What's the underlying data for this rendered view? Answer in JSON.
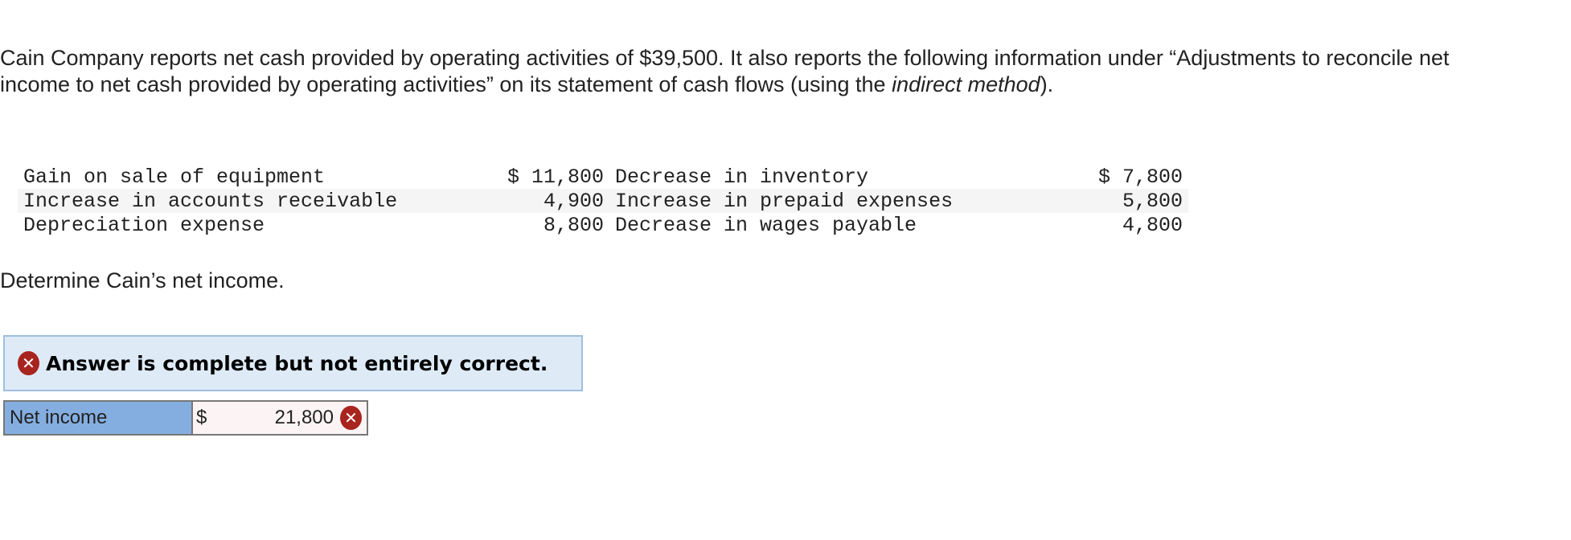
{
  "question": {
    "text_before": "Cain Company reports net cash provided by operating activities of $39,500. It also reports the following information under “Adjustments to reconcile net income to net cash provided by operating activities” on its statement of cash flows (using the ",
    "emphasis": "indirect method",
    "text_after": ")."
  },
  "table": {
    "rows": [
      {
        "label1": "Gain on sale of equipment",
        "amount1": "$ 11,800",
        "label2": "Decrease in inventory",
        "amount2": "$ 7,800"
      },
      {
        "label1": "Increase in accounts receivable",
        "amount1": "4,900",
        "label2": "Increase in prepaid expenses",
        "amount2": "5,800"
      },
      {
        "label1": "Depreciation expense",
        "amount1": "8,800",
        "label2": "Decrease in wages payable",
        "amount2": "4,800"
      }
    ]
  },
  "prompt": "Determine Cain’s net income.",
  "result": {
    "message": "Answer is complete but not entirely correct.",
    "icon": "x-circle-icon",
    "status_color": "#a8241e"
  },
  "answer": {
    "label": "Net income",
    "currency": "$",
    "value": "21,800",
    "icon": "x-circle-icon"
  }
}
